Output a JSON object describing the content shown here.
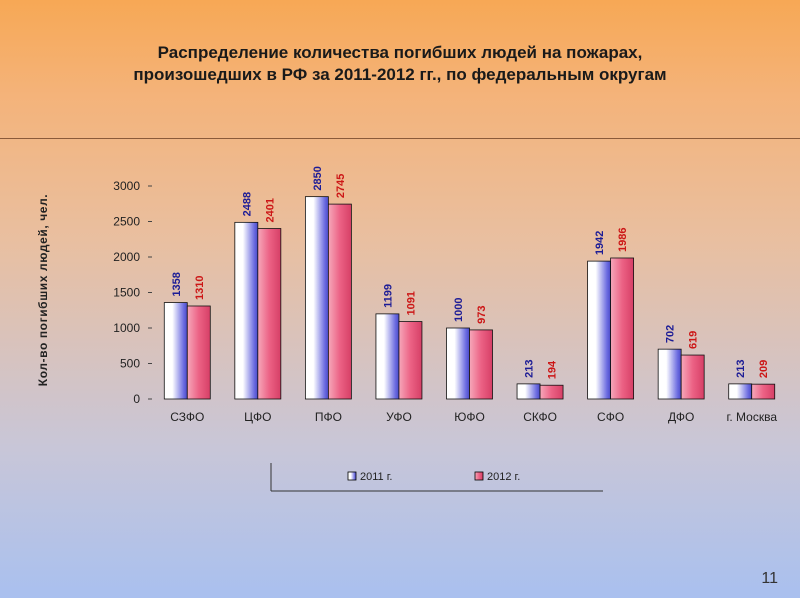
{
  "slide": {
    "title_line1": "Распределение количества погибших людей на пожарах,",
    "title_line2": "произошедших в РФ за 2011-2012 гг., по федеральным округам",
    "page_number": "11"
  },
  "chart_data": {
    "type": "bar",
    "title": "",
    "xlabel": "",
    "ylabel": "Кол-во погибших людей, чел.",
    "ylim": [
      0,
      3000
    ],
    "yticks": [
      0,
      500,
      1000,
      1500,
      2000,
      2500,
      3000
    ],
    "categories": [
      "СЗФО",
      "ЦФО",
      "ПФО",
      "УФО",
      "ЮФО",
      "СКФО",
      "СФО",
      "ДФО",
      "г. Москва"
    ],
    "series": [
      {
        "name": "2011 г.",
        "values": [
          1358,
          2488,
          2850,
          1199,
          1000,
          213,
          1942,
          702,
          213
        ],
        "color": "#5a5ad6",
        "label_color": "#1c1c96"
      },
      {
        "name": "2012 г.",
        "values": [
          1310,
          2401,
          2745,
          1091,
          973,
          194,
          1986,
          619,
          209
        ],
        "color": "#ea5478",
        "label_color": "#cc1616"
      }
    ],
    "grid": false,
    "legend": "bottom"
  }
}
